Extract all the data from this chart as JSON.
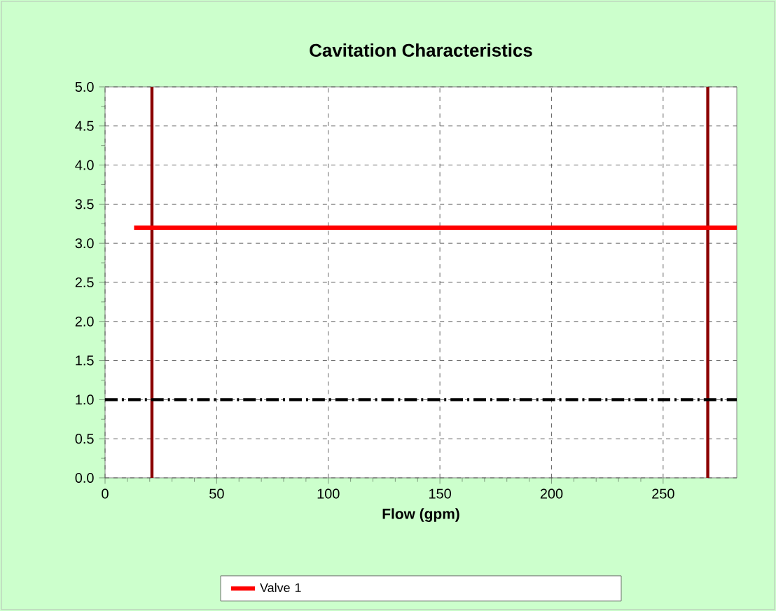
{
  "chart_data": {
    "type": "line",
    "title": "Cavitation Characteristics",
    "xlabel": "Flow (gpm)",
    "xlim": [
      0,
      283
    ],
    "xticks": [
      0,
      50,
      100,
      150,
      200,
      250
    ],
    "ylim": [
      0,
      5
    ],
    "yticks": [
      {
        "value": 0,
        "label": "0.0"
      },
      {
        "value": 0.5,
        "label": "0.5"
      },
      {
        "value": 1,
        "label": "1.0"
      },
      {
        "value": 1.5,
        "label": "1.5"
      },
      {
        "value": 2,
        "label": "2.0"
      },
      {
        "value": 2.5,
        "label": "2.5"
      },
      {
        "value": 3,
        "label": "3.0"
      },
      {
        "value": 3.5,
        "label": "3.5"
      },
      {
        "value": 4,
        "label": "4.0"
      },
      {
        "value": 4.5,
        "label": "4.5"
      },
      {
        "value": 5,
        "label": "5.0"
      }
    ],
    "series": [
      {
        "name": "Valve 1",
        "color": "#ff0000",
        "x": [
          13,
          283
        ],
        "values": [
          3.2,
          3.2
        ]
      }
    ],
    "ref_lines": [
      {
        "axis": "x",
        "value": 21,
        "color": "#8b0000"
      },
      {
        "axis": "x",
        "value": 270,
        "color": "#8b0000"
      },
      {
        "axis": "y",
        "value": 1,
        "color": "#000000",
        "line_style": "dashed"
      }
    ],
    "grid": true,
    "legend": "bottom",
    "marker": "none",
    "line_style": "solid"
  }
}
